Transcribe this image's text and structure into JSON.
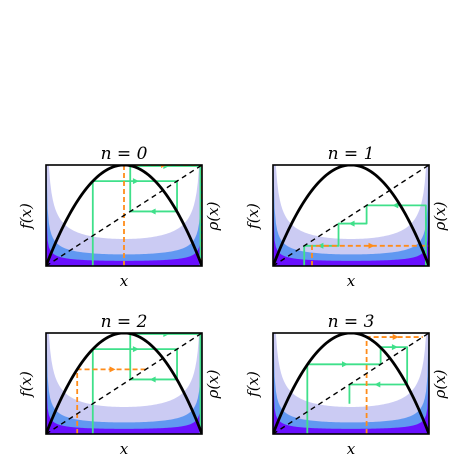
{
  "figure": {
    "panels": [
      {
        "title": "n = 0",
        "xlabel": "x",
        "ylabel_left": "f(x)",
        "ylabel_right": "ρ(x)"
      },
      {
        "title": "n = 1",
        "xlabel": "x",
        "ylabel_left": "f(x)",
        "ylabel_right": "ρ(x)"
      },
      {
        "title": "n = 2",
        "xlabel": "x",
        "ylabel_left": "f(x)",
        "ylabel_right": "ρ(x)"
      },
      {
        "title": "n = 3",
        "xlabel": "x",
        "ylabel_left": "f(x)",
        "ylabel_right": "ρ(x)"
      }
    ]
  },
  "colors": {
    "map_curve": "#000000",
    "diagonal": "#000000",
    "density_fill": "#b9b9ef",
    "density_mid": "#4f8ff0",
    "density_dark": "#6a00ff",
    "cobweb_green": "#3fe08a",
    "cobweb_orange": "#ff8c1a"
  },
  "chart_data": [
    {
      "type": "line",
      "title": "n = 0",
      "xlabel": "x",
      "ylabel": "f(x)",
      "ylabel_right": "ρ(x)",
      "xlim": [
        0,
        1
      ],
      "ylim": [
        0,
        1
      ],
      "map_r": 4,
      "series": [
        {
          "role": "map",
          "x": [
            0,
            0.1,
            0.2,
            0.3,
            0.4,
            0.5,
            0.6,
            0.7,
            0.8,
            0.9,
            1
          ],
          "y": [
            0,
            0.36,
            0.64,
            0.84,
            0.96,
            1,
            0.96,
            0.84,
            0.64,
            0.36,
            0
          ]
        },
        {
          "role": "diagonal",
          "x": [
            0,
            1
          ],
          "y": [
            0,
            1
          ]
        }
      ],
      "cobweb_green": [
        [
          0.3,
          0
        ],
        [
          0.3,
          0.84
        ],
        [
          0.84,
          0.84
        ],
        [
          0.84,
          0.54
        ],
        [
          0.54,
          0.54
        ],
        [
          0.54,
          0.99
        ],
        [
          0.99,
          0.99
        ],
        [
          0.99,
          0
        ]
      ],
      "cobweb_orange": [
        [
          0.5,
          0
        ],
        [
          0.5,
          1
        ],
        [
          1,
          1
        ],
        [
          1,
          0
        ]
      ]
    },
    {
      "type": "line",
      "title": "n = 1",
      "xlabel": "x",
      "ylabel": "f(x)",
      "ylabel_right": "ρ(x)",
      "xlim": [
        0,
        1
      ],
      "ylim": [
        0,
        1
      ],
      "map_r": 4,
      "series": [
        {
          "role": "map",
          "x": [
            0,
            0.1,
            0.2,
            0.3,
            0.4,
            0.5,
            0.6,
            0.7,
            0.8,
            0.9,
            1
          ],
          "y": [
            0,
            0.36,
            0.64,
            0.84,
            0.96,
            1,
            0.96,
            0.84,
            0.64,
            0.36,
            0
          ]
        },
        {
          "role": "diagonal",
          "x": [
            0,
            1
          ],
          "y": [
            0,
            1
          ]
        }
      ],
      "cobweb_green": [
        [
          0.98,
          0
        ],
        [
          0.98,
          0.6
        ],
        [
          0.6,
          0.6
        ],
        [
          0.6,
          0.42
        ],
        [
          0.42,
          0.42
        ],
        [
          0.42,
          0.2
        ],
        [
          0.2,
          0.2
        ],
        [
          0.2,
          0
        ]
      ],
      "cobweb_orange": [
        [
          0.25,
          0
        ],
        [
          0.25,
          0.2
        ],
        [
          1,
          0.2
        ]
      ]
    },
    {
      "type": "line",
      "title": "n = 2",
      "xlabel": "x",
      "ylabel": "f(x)",
      "ylabel_right": "ρ(x)",
      "xlim": [
        0,
        1
      ],
      "ylim": [
        0,
        1
      ],
      "map_r": 4,
      "series": [
        {
          "role": "map",
          "x": [
            0,
            0.1,
            0.2,
            0.3,
            0.4,
            0.5,
            0.6,
            0.7,
            0.8,
            0.9,
            1
          ],
          "y": [
            0,
            0.36,
            0.64,
            0.84,
            0.96,
            1,
            0.96,
            0.84,
            0.64,
            0.36,
            0
          ]
        },
        {
          "role": "diagonal",
          "x": [
            0,
            1
          ],
          "y": [
            0,
            1
          ]
        }
      ],
      "cobweb_green": [
        [
          0.3,
          0
        ],
        [
          0.3,
          0.84
        ],
        [
          0.84,
          0.84
        ],
        [
          0.84,
          0.54
        ],
        [
          0.54,
          0.54
        ],
        [
          0.54,
          0.99
        ],
        [
          0.99,
          0.99
        ],
        [
          0.99,
          0
        ]
      ],
      "cobweb_orange": [
        [
          0.2,
          0
        ],
        [
          0.2,
          0.64
        ],
        [
          0.64,
          0.64
        ]
      ]
    },
    {
      "type": "line",
      "title": "n = 3",
      "xlabel": "x",
      "ylabel": "f(x)",
      "ylabel_right": "ρ(x)",
      "xlim": [
        0,
        1
      ],
      "ylim": [
        0,
        1
      ],
      "map_r": 4,
      "series": [
        {
          "role": "map",
          "x": [
            0,
            0.1,
            0.2,
            0.3,
            0.4,
            0.5,
            0.6,
            0.7,
            0.8,
            0.9,
            1
          ],
          "y": [
            0,
            0.36,
            0.64,
            0.84,
            0.96,
            1,
            0.96,
            0.84,
            0.64,
            0.36,
            0
          ]
        },
        {
          "role": "diagonal",
          "x": [
            0,
            1
          ],
          "y": [
            0,
            1
          ]
        }
      ],
      "cobweb_green": [
        [
          0.22,
          0
        ],
        [
          0.22,
          0.69
        ],
        [
          0.69,
          0.69
        ],
        [
          0.69,
          0.86
        ],
        [
          0.86,
          0.86
        ],
        [
          0.86,
          0.49
        ],
        [
          0.49,
          0.49
        ],
        [
          0.49,
          0.3
        ]
      ],
      "cobweb_orange": [
        [
          0.6,
          0
        ],
        [
          0.6,
          0.96
        ],
        [
          0.96,
          0.96
        ]
      ]
    }
  ]
}
